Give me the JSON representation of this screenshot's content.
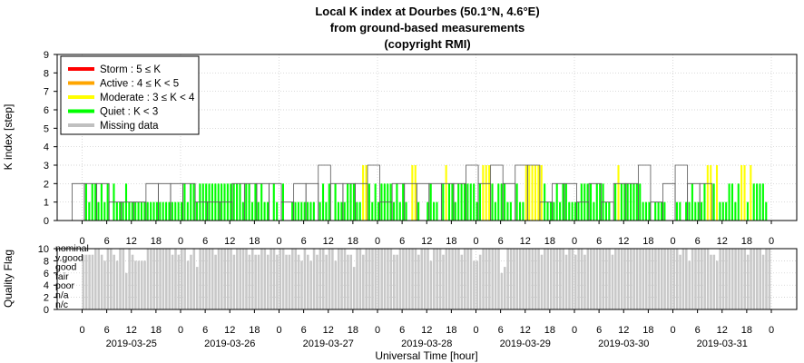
{
  "chart_data": [
    {
      "type": "bar",
      "title": [
        "Local K index at Dourbes (50.1°N, 4.6°E)",
        "from ground-based measurements",
        "(copyright RMI)"
      ],
      "ylabel": "K index [step]",
      "xlabel": "Universal Time [hour]",
      "ylim": [
        0,
        9
      ],
      "yticks": [
        0,
        1,
        2,
        3,
        4,
        5,
        6,
        7,
        8,
        9
      ],
      "grid": true,
      "legend_position": "top-left",
      "legend": [
        {
          "label": "Storm : 5 ≤ K",
          "color": "#ff0000"
        },
        {
          "label": "Active : 4 ≤ K < 5",
          "color": "#ffa500"
        },
        {
          "label": "Moderate : 3 ≤ K < 4",
          "color": "#ffff00"
        },
        {
          "label": "Quiet : K < 3",
          "color": "#00ff00"
        },
        {
          "label": "Missing data",
          "color": "#c0c0c0"
        }
      ],
      "colors": {
        "quiet": "#00ff00",
        "moderate": "#ffff00",
        "active": "#ffa500",
        "storm": "#ff0000",
        "missing": "#c0c0c0"
      },
      "x_hour_labels": [
        "0",
        "6",
        "12",
        "18"
      ],
      "dates": [
        "2019-03-25",
        "2019-03-26",
        "2019-03-27",
        "2019-03-28",
        "2019-03-29",
        "2019-03-30",
        "2019-03-31"
      ],
      "forecast_3h": [
        2,
        2,
        2,
        1,
        1,
        1,
        2,
        2,
        2,
        2,
        1,
        1,
        1,
        2,
        2,
        2,
        2,
        1,
        2,
        2,
        3,
        2,
        2,
        2,
        3,
        1,
        2,
        2,
        2,
        2,
        2,
        2,
        3,
        2,
        3,
        2,
        3,
        3,
        1,
        2,
        2,
        1,
        2,
        1,
        2,
        2,
        3,
        1,
        2,
        3,
        2,
        2
      ],
      "k_values_15min": [
        0,
        2,
        1,
        2,
        2,
        1,
        2,
        1,
        2,
        0,
        2,
        1,
        1,
        1,
        2,
        1,
        1,
        1,
        1,
        1,
        1,
        1,
        1,
        1,
        1,
        1,
        1,
        1,
        1,
        1,
        1,
        1,
        1,
        2,
        1,
        2,
        2,
        1,
        2,
        2,
        2,
        2,
        2,
        2,
        2,
        2,
        2,
        2,
        2,
        2,
        2,
        2,
        1,
        2,
        2,
        1,
        2,
        1,
        2,
        1,
        1,
        0,
        2,
        1,
        0,
        2,
        0,
        0,
        1,
        1,
        1,
        1,
        1,
        1,
        1,
        1,
        0,
        1,
        2,
        1,
        2,
        0,
        2,
        1,
        1,
        1,
        2,
        2,
        2,
        1,
        1,
        3,
        3,
        2,
        1,
        2,
        1,
        2,
        2,
        2,
        2,
        1,
        2,
        1,
        2,
        1,
        0,
        3,
        3,
        1,
        0,
        0,
        1,
        2,
        1,
        1,
        0,
        2,
        3,
        2,
        2,
        1,
        2,
        2,
        2,
        2,
        2,
        2,
        1,
        2,
        3,
        3,
        3,
        2,
        1,
        2,
        2,
        2,
        1,
        1,
        0,
        2,
        1,
        1,
        3,
        3,
        3,
        3,
        3,
        3,
        2,
        1,
        1,
        1,
        2,
        1,
        2,
        2,
        1,
        1,
        1,
        1,
        2,
        2,
        2,
        2,
        1,
        2,
        2,
        2,
        1,
        1,
        0,
        2,
        3,
        2,
        2,
        2,
        2,
        2,
        2,
        2,
        1,
        1,
        1,
        0,
        1,
        1,
        1,
        1,
        0,
        0,
        0,
        1,
        1,
        0,
        1,
        1,
        2,
        1,
        1,
        1,
        2,
        3,
        3,
        2,
        3,
        1,
        1,
        1,
        2,
        2,
        1,
        2,
        3,
        3,
        1,
        3,
        2,
        2,
        2,
        2,
        1,
        0
      ]
    },
    {
      "type": "bar",
      "ylabel": "Quality Flag",
      "ylim": [
        0,
        10
      ],
      "yticks": [
        0,
        2,
        4,
        6,
        8,
        10
      ],
      "quality_labels": [
        "nominal",
        "v.good",
        "good",
        "fair",
        "poor",
        "n/a",
        "n/c"
      ],
      "color": "#c8c8c8",
      "quality_values": [
        9,
        9,
        9,
        9,
        10,
        10,
        9,
        8,
        10,
        10,
        9,
        8,
        10,
        10,
        6,
        10,
        9,
        8,
        8,
        8,
        8,
        10,
        10,
        10,
        10,
        10,
        10,
        10,
        10,
        9,
        10,
        9,
        10,
        10,
        8,
        9,
        10,
        7,
        10,
        10,
        10,
        10,
        10,
        9,
        10,
        10,
        10,
        10,
        10,
        9,
        10,
        10,
        10,
        10,
        9,
        10,
        9,
        9,
        10,
        10,
        9,
        10,
        10,
        9,
        10,
        10,
        9,
        9,
        10,
        10,
        9,
        8,
        10,
        9,
        8,
        10,
        9,
        10,
        10,
        9,
        10,
        10,
        8,
        10,
        10,
        10,
        9,
        9,
        7,
        10,
        10,
        9,
        10,
        10,
        10,
        10,
        10,
        10,
        10,
        10,
        10,
        9,
        9,
        10,
        10,
        10,
        10,
        10,
        10,
        9,
        10,
        10,
        10,
        8,
        10,
        10,
        10,
        9,
        10,
        10,
        10,
        10,
        10,
        9,
        10,
        10,
        10,
        8,
        8,
        9,
        10,
        10,
        10,
        10,
        10,
        10,
        6,
        7,
        10,
        10,
        10,
        10,
        10,
        10,
        10,
        10,
        10,
        10,
        10,
        9,
        10,
        10,
        10,
        10,
        10,
        10,
        10,
        9,
        10,
        10,
        9,
        10,
        10,
        9,
        10,
        10,
        10,
        10,
        10,
        10,
        10,
        10,
        9,
        10,
        10,
        10,
        10,
        10,
        10,
        10,
        10,
        10,
        10,
        10,
        10,
        10,
        10,
        10,
        10,
        10,
        10,
        10,
        10,
        10,
        9,
        10,
        10,
        8,
        10,
        10,
        10,
        10,
        10,
        10,
        9,
        9,
        8,
        10,
        10,
        10,
        10,
        10,
        10,
        10,
        10,
        10,
        9,
        10,
        10,
        10,
        10,
        9,
        10,
        10
      ]
    }
  ]
}
